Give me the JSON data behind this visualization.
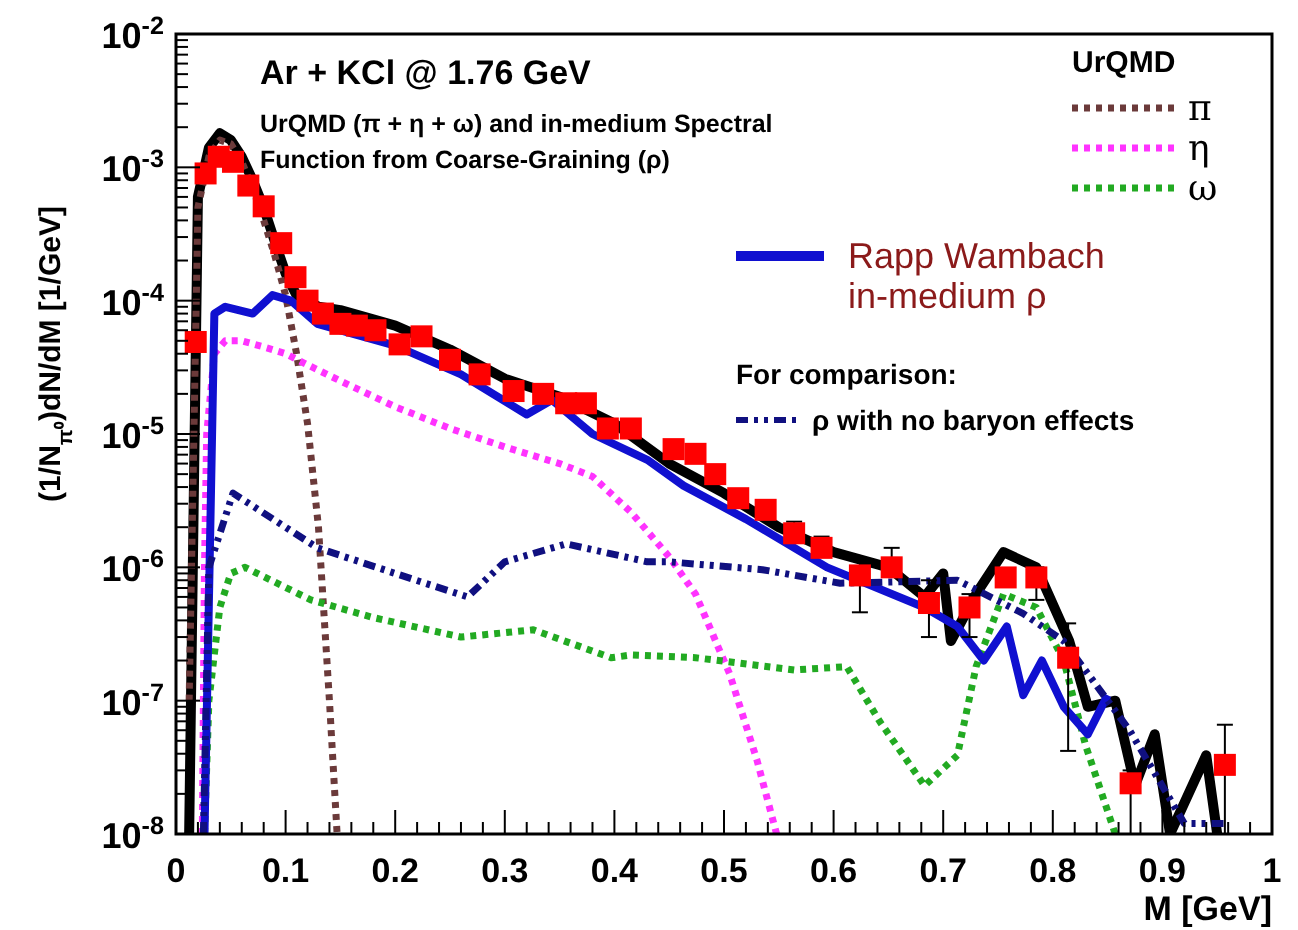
{
  "chart_data": {
    "type": "line",
    "title": "Ar + KCl @ 1.76 GeV",
    "subtitle": "UrQMD (π + η + ω) and in-medium Spectral Function from Coarse-Graining (ρ)",
    "xlabel": "M [GeV]",
    "ylabel": "(1/N$_{π⁰}$)dN/dM [1/GeV]",
    "legend_title": "UrQMD",
    "annotations": [
      "For comparison:"
    ],
    "legend": "top right",
    "log": "y",
    "grid": false,
    "xlim": [
      0,
      1
    ],
    "xticks": [
      0,
      0.1,
      0.2,
      0.3,
      0.4,
      0.5,
      0.6,
      0.7,
      0.8,
      0.9,
      1
    ],
    "ylim": [
      1e-08,
      0.01
    ],
    "yticks": [
      {
        "value": 1e-08,
        "label": "10$^{-8}$"
      },
      {
        "value": 1e-07,
        "label": "10$^{-7}$"
      },
      {
        "value": 1e-06,
        "label": "10$^{-6}$"
      },
      {
        "value": 1e-05,
        "label": "10$^{-5}$"
      },
      {
        "value": 0.0001,
        "label": "10$^{-4}$"
      },
      {
        "value": 0.001,
        "label": "10$^{-3}$"
      },
      {
        "value": 0.01,
        "label": "10$^{-2}$"
      }
    ],
    "series": [
      {
        "color": "#000000",
        "line_style": "solid",
        "x": [
          0.012,
          0.02,
          0.03,
          0.04,
          0.05,
          0.06,
          0.07,
          0.08,
          0.09,
          0.1,
          0.11,
          0.13,
          0.15,
          0.2,
          0.25,
          0.3,
          0.35,
          0.4,
          0.45,
          0.5,
          0.55,
          0.6,
          0.65,
          0.683,
          0.7,
          0.707,
          0.73,
          0.755,
          0.785,
          0.815,
          0.832,
          0.857,
          0.875,
          0.893,
          0.907,
          0.94,
          0.95
        ],
        "values": [
          1e-08,
          0.0006,
          0.0014,
          0.0018,
          0.0016,
          0.0012,
          0.0008,
          0.0005,
          0.00028,
          0.00016,
          0.00011,
          9e-05,
          8.5e-05,
          6.5e-05,
          4.3e-05,
          2.6e-05,
          1.9e-05,
          1.2e-05,
          6e-06,
          3.6e-06,
          2e-06,
          1.3e-06,
          1e-06,
          6e-07,
          9e-07,
          2.8e-07,
          6.3e-07,
          1.3e-06,
          1e-06,
          2.8e-07,
          9e-08,
          1e-07,
          2.3e-08,
          5.6e-08,
          1e-08,
          3.9e-08,
          1e-08
        ]
      },
      {
        "name": "π",
        "color": "#6b3a3a",
        "line_style": "dotted",
        "x": [
          0.012,
          0.02,
          0.03,
          0.04,
          0.05,
          0.06,
          0.07,
          0.08,
          0.09,
          0.1,
          0.11,
          0.12,
          0.13,
          0.14,
          0.147
        ],
        "values": [
          1e-07,
          0.0005,
          0.0012,
          0.0016,
          0.0015,
          0.0011,
          0.0007,
          0.0004,
          0.00022,
          0.00011,
          4e-05,
          1.2e-05,
          2e-06,
          1e-07,
          1e-08
        ]
      },
      {
        "name": "η",
        "color": "#ff33ff",
        "line_style": "dotted",
        "x": [
          0.024,
          0.026,
          0.028,
          0.035,
          0.045,
          0.06,
          0.08,
          0.1,
          0.12,
          0.15,
          0.2,
          0.25,
          0.3,
          0.35,
          0.38,
          0.415,
          0.45,
          0.474,
          0.505,
          0.53,
          0.548
        ],
        "values": [
          1e-08,
          1e-06,
          1e-05,
          4e-05,
          5e-05,
          5e-05,
          4.5e-05,
          4e-05,
          3.3e-05,
          2.5e-05,
          1.6e-05,
          1.1e-05,
          8e-06,
          6e-06,
          4.8e-06,
          2.6e-06,
          1.2e-06,
          6.3e-07,
          1.6e-07,
          3.6e-08,
          1e-08
        ]
      },
      {
        "name": "ω",
        "color": "#22aa22",
        "line_style": "dotted",
        "x": [
          0.026,
          0.03,
          0.04,
          0.05,
          0.063,
          0.123,
          0.18,
          0.26,
          0.326,
          0.397,
          0.415,
          0.474,
          0.564,
          0.612,
          0.642,
          0.683,
          0.713,
          0.73,
          0.755,
          0.785,
          0.81,
          0.83,
          0.857
        ],
        "values": [
          1e-08,
          1e-07,
          5e-07,
          9e-07,
          1e-06,
          5.7e-07,
          4.2e-07,
          3e-07,
          3.4e-07,
          2.1e-07,
          2.2e-07,
          2.1e-07,
          1.7e-07,
          1.8e-07,
          7e-08,
          2.3e-08,
          3.9e-08,
          1.8e-07,
          6.3e-07,
          5e-07,
          2e-07,
          4.6e-08,
          1e-08
        ]
      },
      {
        "name": "Rapp Wambach in-medium ρ",
        "color": "#1010d0",
        "line_style": "solid",
        "x": [
          0.026,
          0.035,
          0.045,
          0.07,
          0.088,
          0.105,
          0.129,
          0.2,
          0.26,
          0.32,
          0.343,
          0.38,
          0.43,
          0.463,
          0.52,
          0.594,
          0.683,
          0.713,
          0.737,
          0.758,
          0.773,
          0.79,
          0.81,
          0.832,
          0.85
        ],
        "values": [
          1e-08,
          8e-05,
          9e-05,
          8e-05,
          0.00011,
          0.0001,
          6.7e-05,
          4.6e-05,
          2.8e-05,
          1.4e-05,
          1.8e-05,
          1e-05,
          6.4e-06,
          4.1e-06,
          2.3e-06,
          1e-06,
          5e-07,
          3.6e-07,
          2e-07,
          3.6e-07,
          1.1e-07,
          2e-07,
          9e-08,
          5.6e-08,
          1.1e-07
        ]
      },
      {
        "name": "ρ with no baryon effects",
        "color": "#101080",
        "line_style": "dashed",
        "x": [
          0.025,
          0.03,
          0.052,
          0.129,
          0.2,
          0.266,
          0.3,
          0.356,
          0.43,
          0.45,
          0.535,
          0.606,
          0.713,
          0.773,
          0.81,
          0.87,
          0.92,
          0.96
        ],
        "values": [
          1e-08,
          1e-06,
          3.6e-06,
          1.4e-06,
          9e-07,
          6e-07,
          1.1e-06,
          1.5e-06,
          1.1e-06,
          1.1e-06,
          9.6e-07,
          7.6e-07,
          8e-07,
          4.5e-07,
          2.8e-07,
          6e-08,
          1.2e-08,
          1.2e-08
        ]
      },
      {
        "type": "scatter",
        "color": "#ff0000",
        "marker": "square",
        "x": [
          0.018,
          0.027,
          0.039,
          0.052,
          0.066,
          0.08,
          0.096,
          0.109,
          0.12,
          0.134,
          0.15,
          0.165,
          0.182,
          0.204,
          0.224,
          0.25,
          0.277,
          0.308,
          0.335,
          0.356,
          0.374,
          0.394,
          0.415,
          0.454,
          0.474,
          0.492,
          0.513,
          0.538,
          0.564,
          0.589,
          0.624,
          0.653,
          0.687,
          0.724,
          0.757,
          0.785,
          0.814,
          0.871,
          0.957
        ],
        "values": [
          4.9e-05,
          0.0009,
          0.0012,
          0.0011,
          0.00073,
          0.00051,
          0.00027,
          0.00015,
          0.0001,
          8e-05,
          6.7e-05,
          6.5e-05,
          6e-05,
          4.7e-05,
          5.4e-05,
          3.6e-05,
          2.8e-05,
          2.1e-05,
          2e-05,
          1.7e-05,
          1.7e-05,
          1.1e-05,
          1.1e-05,
          7.7e-06,
          7.1e-06,
          5e-06,
          3.3e-06,
          2.7e-06,
          1.8e-06,
          1.4e-06,
          8.7e-07,
          1e-06,
          5.4e-07,
          5e-07,
          8.4e-07,
          8.4e-07,
          2.1e-07,
          2.4e-08,
          3.3e-08
        ],
        "errors": [
          null,
          null,
          null,
          null,
          null,
          null,
          null,
          null,
          null,
          null,
          null,
          null,
          null,
          null,
          null,
          null,
          null,
          null,
          null,
          null,
          null,
          null,
          null,
          null,
          null,
          null,
          null,
          null,
          [
            1.6e-06,
            2.2e-06
          ],
          [
            1.2e-06,
            1.7e-06
          ],
          [
            4.6e-07,
            1.14e-06
          ],
          [
            9e-07,
            1.4e-06
          ],
          [
            3e-07,
            8e-07
          ],
          [
            3e-07,
            6.3e-07
          ],
          null,
          [
            5.7e-07,
            1e-06
          ],
          [
            4.2e-08,
            3.8e-07
          ],
          [
            1e-08,
            3e-08
          ],
          [
            1e-08,
            6.6e-08
          ]
        ]
      }
    ]
  }
}
